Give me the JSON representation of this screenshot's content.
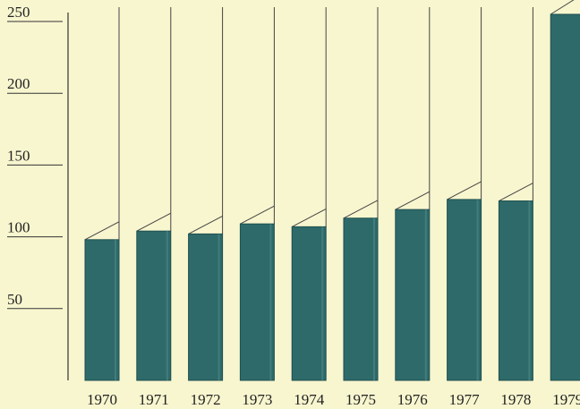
{
  "chart_data": {
    "type": "bar",
    "categories": [
      "1970",
      "1971",
      "1972",
      "1973",
      "1974",
      "1975",
      "1976",
      "1977",
      "1978",
      "1979"
    ],
    "values": [
      98,
      104,
      102,
      109,
      107,
      113,
      119,
      126,
      125,
      255
    ],
    "ylim": [
      0,
      255
    ],
    "yticks": [
      50,
      100,
      150,
      200,
      250
    ],
    "title": "",
    "xlabel": "",
    "ylabel": "",
    "grid": false,
    "bar_color": "#2e6a6a",
    "background_color": "#f8f6cf"
  }
}
